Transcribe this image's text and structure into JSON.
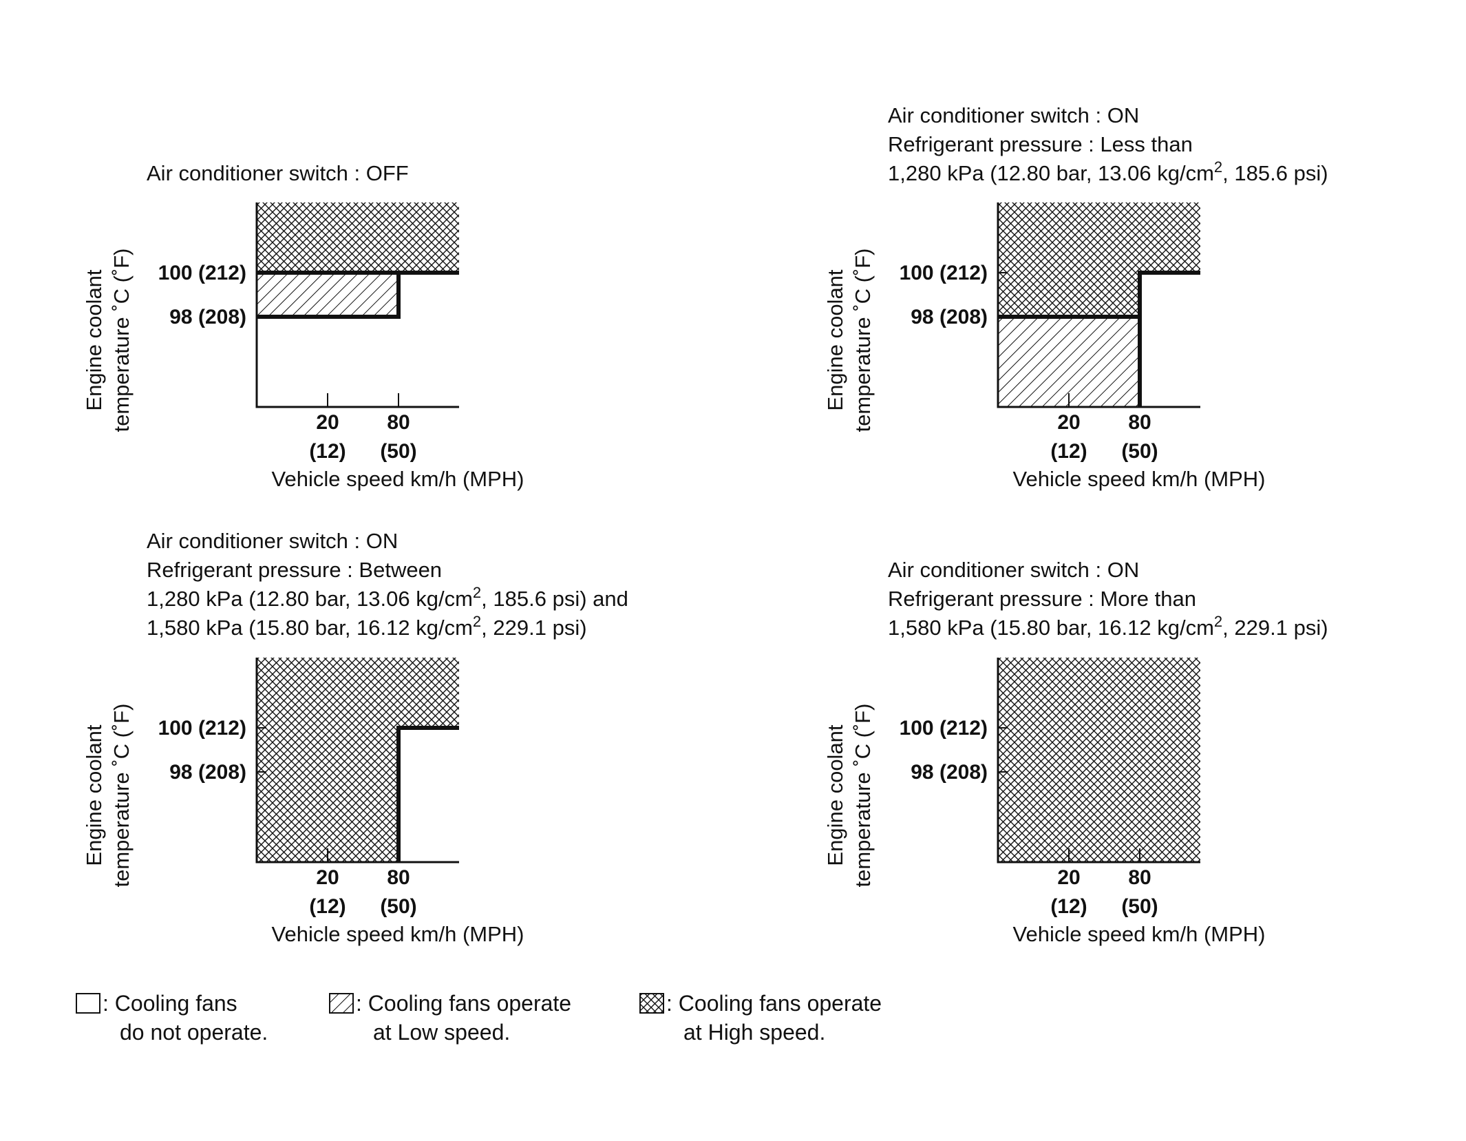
{
  "y_axis_label": [
    "Engine coolant",
    "temperature ˚C (˚F)"
  ],
  "x_axis_label": "Vehicle speed km/h (MPH)",
  "y_ticks": [
    "100 (212)",
    "98 (208)"
  ],
  "x_ticks": [
    {
      "kmh": "20",
      "mph": "(12)"
    },
    {
      "kmh": "80",
      "mph": "(50)"
    }
  ],
  "panels": [
    {
      "caption": [
        {
          "pre": "Air conditioner switch : OFF"
        }
      ],
      "regions": "off"
    },
    {
      "caption": [
        {
          "pre": "Air conditioner switch : ON"
        },
        {
          "pre": "Refrigerant pressure : Less than"
        },
        {
          "pre": "1,280 kPa (12.80 bar, 13.06 kg/cm",
          "sup": "2",
          "post": ", 185.6 psi)"
        }
      ],
      "regions": "low_pressure"
    },
    {
      "caption": [
        {
          "pre": "Air conditioner switch : ON"
        },
        {
          "pre": "Refrigerant pressure : Between"
        },
        {
          "pre": "1,280 kPa (12.80 bar, 13.06 kg/cm",
          "sup": "2",
          "post": ", 185.6 psi) and"
        },
        {
          "pre": "1,580 kPa (15.80 bar, 16.12 kg/cm",
          "sup": "2",
          "post": ", 229.1 psi)"
        }
      ],
      "regions": "mid_pressure"
    },
    {
      "caption": [
        {
          "pre": "Air conditioner switch : ON"
        },
        {
          "pre": "Refrigerant pressure : More than"
        },
        {
          "pre": "1,580 kPa (15.80 bar, 16.12 kg/cm",
          "sup": "2",
          "post": ", 229.1 psi)"
        }
      ],
      "regions": "high_pressure"
    }
  ],
  "legend": [
    {
      "symbol": "blank",
      "lines": [
        ": Cooling fans",
        "do not operate."
      ]
    },
    {
      "symbol": "hatch",
      "lines": [
        ": Cooling fans operate",
        "at Low speed."
      ]
    },
    {
      "symbol": "crosshatch",
      "lines": [
        ": Cooling fans operate",
        "at High speed."
      ]
    }
  ]
}
